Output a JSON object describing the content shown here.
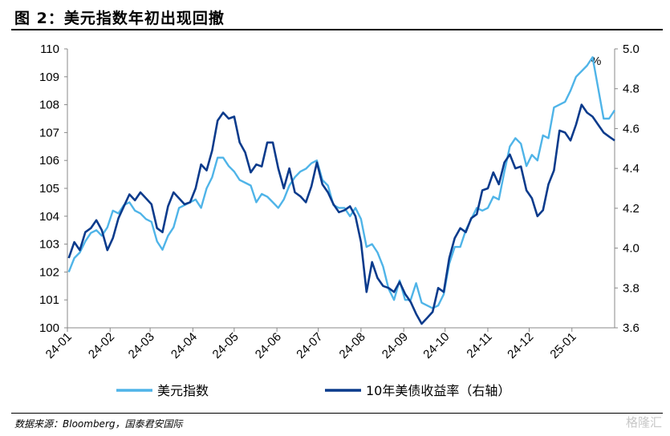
{
  "figure": {
    "title": "图 2：美元指数年初出现回撤",
    "source": "数据来源：Bloomberg，国泰君安国际",
    "watermark": "格隆汇"
  },
  "colors": {
    "dxy": "#4FB4E8",
    "yield": "#0B3B8C"
  },
  "chart_data": {
    "type": "line",
    "x_ticks": [
      "24-01",
      "24-02",
      "24-03",
      "24-04",
      "24-05",
      "24-06",
      "24-07",
      "24-08",
      "24-09",
      "24-10",
      "24-11",
      "24-12",
      "25-01"
    ],
    "left_axis": {
      "ylim": [
        100,
        110
      ],
      "ticks": [
        "100",
        "101",
        "102",
        "103",
        "104",
        "105",
        "106",
        "107",
        "108",
        "109",
        "110"
      ]
    },
    "right_axis": {
      "ylim": [
        3.6,
        5.0
      ],
      "ticks": [
        "3.6",
        "3.8",
        "4.0",
        "4.2",
        "4.4",
        "4.6",
        "4.8",
        "5.0"
      ],
      "unit": "%"
    },
    "x": [
      "2024-01-02",
      "2024-01-06",
      "2024-01-10",
      "2024-01-14",
      "2024-01-18",
      "2024-01-22",
      "2024-01-26",
      "2024-01-30",
      "2024-02-03",
      "2024-02-07",
      "2024-02-11",
      "2024-02-15",
      "2024-02-19",
      "2024-02-23",
      "2024-02-27",
      "2024-03-02",
      "2024-03-06",
      "2024-03-10",
      "2024-03-14",
      "2024-03-18",
      "2024-03-22",
      "2024-03-26",
      "2024-03-30",
      "2024-04-03",
      "2024-04-07",
      "2024-04-11",
      "2024-04-15",
      "2024-04-19",
      "2024-04-23",
      "2024-04-27",
      "2024-05-01",
      "2024-05-05",
      "2024-05-09",
      "2024-05-13",
      "2024-05-17",
      "2024-05-21",
      "2024-05-25",
      "2024-05-29",
      "2024-06-02",
      "2024-06-06",
      "2024-06-10",
      "2024-06-14",
      "2024-06-18",
      "2024-06-22",
      "2024-06-26",
      "2024-06-30",
      "2024-07-04",
      "2024-07-08",
      "2024-07-12",
      "2024-07-16",
      "2024-07-20",
      "2024-07-24",
      "2024-07-28",
      "2024-08-01",
      "2024-08-05",
      "2024-08-09",
      "2024-08-13",
      "2024-08-17",
      "2024-08-21",
      "2024-08-25",
      "2024-08-29",
      "2024-09-02",
      "2024-09-06",
      "2024-09-10",
      "2024-09-14",
      "2024-09-18",
      "2024-09-22",
      "2024-09-26",
      "2024-09-30",
      "2024-10-04",
      "2024-10-08",
      "2024-10-12",
      "2024-10-16",
      "2024-10-20",
      "2024-10-24",
      "2024-10-28",
      "2024-11-01",
      "2024-11-05",
      "2024-11-09",
      "2024-11-13",
      "2024-11-17",
      "2024-11-21",
      "2024-11-25",
      "2024-11-29",
      "2024-12-03",
      "2024-12-07",
      "2024-12-11",
      "2024-12-15",
      "2024-12-19",
      "2024-12-23",
      "2024-12-27",
      "2024-12-31",
      "2025-01-04",
      "2025-01-08",
      "2025-01-12",
      "2025-01-16",
      "2025-01-20",
      "2025-01-24",
      "2025-01-28",
      "2025-02-01"
    ],
    "series": [
      {
        "name": "美元指数",
        "axis": "left",
        "values": [
          102.0,
          102.5,
          102.7,
          103.1,
          103.4,
          103.5,
          103.3,
          103.6,
          104.2,
          104.1,
          104.4,
          104.5,
          104.2,
          104.1,
          103.9,
          103.8,
          103.1,
          102.8,
          103.3,
          103.6,
          104.3,
          104.4,
          104.5,
          104.6,
          104.3,
          105.0,
          105.4,
          106.1,
          106.1,
          105.8,
          105.6,
          105.3,
          105.2,
          105.1,
          104.5,
          104.8,
          104.7,
          104.5,
          104.3,
          104.6,
          105.1,
          105.4,
          105.6,
          105.7,
          105.9,
          106.0,
          105.3,
          105.1,
          104.4,
          104.3,
          104.3,
          104.0,
          104.3,
          103.9,
          102.9,
          103.0,
          102.7,
          102.2,
          101.4,
          101.0,
          101.7,
          101.0,
          101.0,
          101.6,
          100.9,
          100.8,
          100.7,
          100.8,
          101.2,
          102.3,
          102.9,
          102.9,
          103.5,
          103.9,
          104.3,
          104.2,
          104.3,
          104.7,
          104.6,
          105.6,
          106.5,
          106.8,
          106.6,
          105.8,
          106.2,
          106.0,
          106.9,
          106.8,
          107.9,
          108.0,
          108.1,
          108.5,
          109.0,
          109.2,
          109.4,
          109.7,
          108.6,
          107.5,
          107.5,
          107.8
        ],
        "color_key": "dxy"
      },
      {
        "name": "10年美债收益率（右轴）",
        "axis": "right",
        "values": [
          3.95,
          4.03,
          3.99,
          4.08,
          4.1,
          4.14,
          4.09,
          3.99,
          4.05,
          4.15,
          4.21,
          4.27,
          4.24,
          4.28,
          4.25,
          4.22,
          4.1,
          4.08,
          4.21,
          4.28,
          4.25,
          4.22,
          4.23,
          4.3,
          4.42,
          4.39,
          4.49,
          4.64,
          4.68,
          4.65,
          4.66,
          4.53,
          4.48,
          4.38,
          4.42,
          4.41,
          4.53,
          4.53,
          4.4,
          4.3,
          4.4,
          4.28,
          4.26,
          4.23,
          4.31,
          4.43,
          4.32,
          4.28,
          4.22,
          4.18,
          4.19,
          4.21,
          4.16,
          4.03,
          3.78,
          3.93,
          3.85,
          3.81,
          3.8,
          3.78,
          3.83,
          3.77,
          3.73,
          3.67,
          3.62,
          3.65,
          3.68,
          3.8,
          3.78,
          3.95,
          4.05,
          4.1,
          4.08,
          4.15,
          4.17,
          4.29,
          4.3,
          4.38,
          4.32,
          4.43,
          4.47,
          4.4,
          4.41,
          4.29,
          4.25,
          4.16,
          4.19,
          4.32,
          4.39,
          4.59,
          4.58,
          4.54,
          4.62,
          4.72,
          4.68,
          4.66,
          4.62,
          4.58,
          4.56,
          4.54
        ],
        "color_key": "yield"
      }
    ],
    "legend_placement": "bottom",
    "grid": false
  }
}
